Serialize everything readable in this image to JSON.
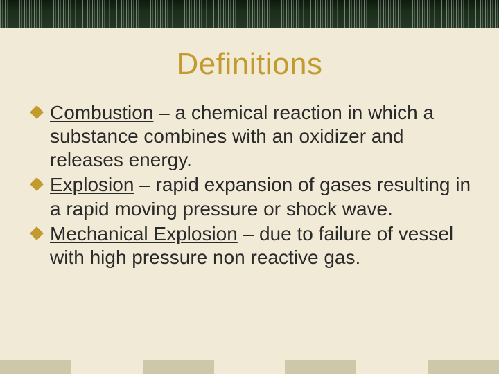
{
  "colors": {
    "background": "#f1ead6",
    "title_color": "#c39a2e",
    "bullet_color": "#c39a2e",
    "body_text": "#2a2a2a",
    "top_strip": "#1a2a1a",
    "bottom_bar": "#b7b08e"
  },
  "typography": {
    "title_font": "Impact",
    "title_fontsize_pt": 33,
    "body_font": "Arial",
    "body_fontsize_pt": 21
  },
  "title": "Definitions",
  "bullets": [
    {
      "term": "Combustion",
      "definition": " – a chemical reaction in which a substance combines with an oxidizer and releases energy."
    },
    {
      "term": "Explosion",
      "definition": " – rapid expansion of gases resulting in a rapid moving pressure or shock wave."
    },
    {
      "term": "Mechanical Explosion",
      "definition": " – due to failure of vessel with high pressure non reactive gas."
    }
  ]
}
